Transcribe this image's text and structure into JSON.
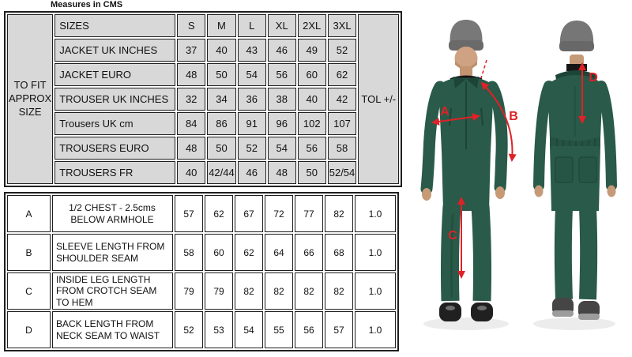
{
  "title": "Measures in CMS",
  "size_table": {
    "fit_label": "TO FIT APPROX SIZE",
    "tol_label": "TOL +/-",
    "rows": [
      {
        "label": "SIZES",
        "values": [
          "S",
          "M",
          "L",
          "XL",
          "2XL",
          "3XL"
        ]
      },
      {
        "label": "JACKET UK INCHES",
        "values": [
          "37",
          "40",
          "43",
          "46",
          "49",
          "52"
        ]
      },
      {
        "label": "JACKET EURO",
        "values": [
          "48",
          "50",
          "54",
          "56",
          "60",
          "62"
        ]
      },
      {
        "label": "TROUSER UK INCHES",
        "values": [
          "32",
          "34",
          "36",
          "38",
          "40",
          "42"
        ]
      },
      {
        "label": "Trousers UK cm",
        "values": [
          "84",
          "86",
          "91",
          "96",
          "102",
          "107"
        ]
      },
      {
        "label": "TROUSERS EURO",
        "values": [
          "48",
          "50",
          "52",
          "54",
          "56",
          "58"
        ]
      },
      {
        "label": "TROUSERS FR",
        "values": [
          "40",
          "42/44",
          "46",
          "48",
          "50",
          "52/54"
        ]
      }
    ]
  },
  "measurement_table": {
    "rows": [
      {
        "code": "A",
        "label": "1/2 CHEST - 2.5cms BELOW ARMHOLE",
        "values": [
          "57",
          "62",
          "67",
          "72",
          "77",
          "82"
        ],
        "tol": "1.0"
      },
      {
        "code": "B",
        "label": "SLEEVE LENGTH FROM SHOULDER SEAM",
        "values": [
          "58",
          "60",
          "62",
          "64",
          "66",
          "68"
        ],
        "tol": "1.0"
      },
      {
        "code": "C",
        "label": "INSIDE LEG LENGTH FROM CROTCH SEAM TO HEM",
        "values": [
          "79",
          "79",
          "82",
          "82",
          "82",
          "82"
        ],
        "tol": "1.0"
      },
      {
        "code": "D",
        "label": "BACK LENGTH FROM NECK SEAM TO WAIST",
        "values": [
          "52",
          "53",
          "54",
          "55",
          "56",
          "57"
        ],
        "tol": "1.0"
      }
    ]
  },
  "photos": {
    "front": {
      "labels": {
        "chest": "A",
        "sleeve": "B",
        "inside_leg": "C"
      }
    },
    "back": {
      "labels": {
        "back_length": "D"
      }
    }
  },
  "colors": {
    "arrow_red": "#e02127",
    "coverall_green": "#2a5a49",
    "cell_gray": "#d8d8d8",
    "border_dark": "#1f1f1f"
  }
}
